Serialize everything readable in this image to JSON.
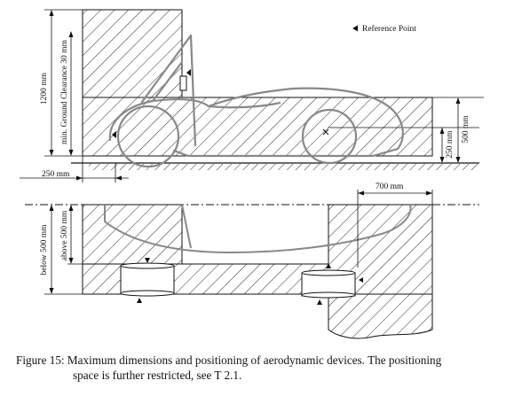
{
  "figure": {
    "legend": "Reference Point",
    "side_view": {
      "dim_total_height": "1200 mm",
      "dim_ground_clearance": "min. Ground Clearance 30 mm",
      "dim_rear_overhang": "250 mm",
      "dim_right_upper": "500 mm",
      "dim_right_lower": "250 mm"
    },
    "top_view": {
      "dim_front_width": "700 mm",
      "dim_below": "below 500 mm",
      "dim_above": "above 500 mm"
    }
  },
  "caption": {
    "label": "Figure 15:",
    "line1": "Maximum dimensions and positioning of aerodynamic devices. The positioning",
    "line2": "space is further restricted, see T 2.1."
  },
  "colors": {
    "ink": "#111111",
    "car": "#888888",
    "paper": "#ffffff"
  }
}
